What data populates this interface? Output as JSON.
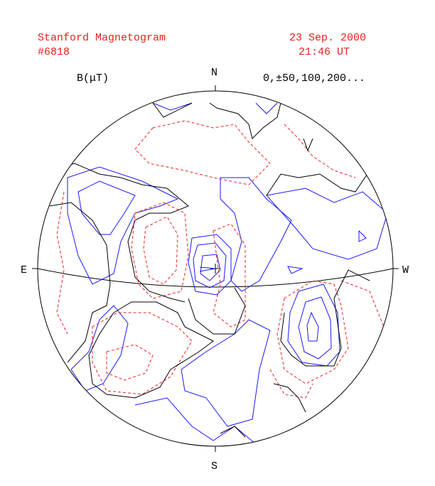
{
  "header": {
    "title": "Stanford Magnetogram",
    "number": "#6818",
    "date": "23 Sep. 2000",
    "time": "21:46 UT"
  },
  "legend": {
    "unit": "B(μT)",
    "levels": "0,±50,100,200..."
  },
  "compass": {
    "north": "N",
    "south": "S",
    "east": "E",
    "west": "W"
  }
}
